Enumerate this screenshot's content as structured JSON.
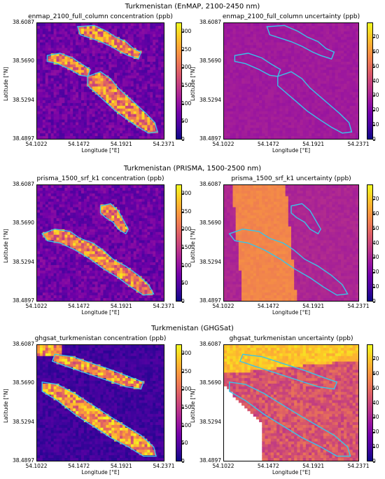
{
  "rows": [
    {
      "title": "Turkmenistan (EnMAP, 2100-2450 nm)",
      "left": {
        "title": "enmap_2100_full_column concentration (ppb)"
      },
      "right": {
        "title": "enmap_2100_full_column uncertainty (ppb)"
      }
    },
    {
      "title": "Turkmenistan (PRISMA, 1500-2500 nm)",
      "left": {
        "title": "prisma_1500_srf_k1 concentration (ppb)"
      },
      "right": {
        "title": "prisma_1500_srf_k1 uncertainty (ppb)"
      }
    },
    {
      "title": "Turkmenistan (GHGSat)",
      "left": {
        "title": "ghgsat_turkmenistan concentration (ppb)"
      },
      "right": {
        "title": "ghgsat_turkmenistan uncertainty (ppb)"
      }
    }
  ],
  "axes": {
    "xlabel": "Longitude [°E]",
    "ylabel": "Latitude [°N]",
    "xticks": [
      "54.1022",
      "54.1472",
      "54.1921",
      "54.2371"
    ],
    "yticks": [
      "38.6087",
      "38.5690",
      "38.5294",
      "38.4897"
    ]
  },
  "colorbars": {
    "concentration_ticks": [
      "300",
      "250",
      "200",
      "150",
      "100",
      "50",
      "0"
    ],
    "uncertainty_ticks": [
      "70",
      "60",
      "50",
      "40",
      "30",
      "20",
      "10",
      "0"
    ]
  },
  "chart_data": [
    {
      "type": "heatmap",
      "title": "enmap_2100_full_column concentration (ppb)",
      "colorscale": "plasma",
      "zlim": [
        0,
        325
      ],
      "xlim": [
        54.1022,
        54.2371
      ],
      "ylim": [
        38.4897,
        38.6087
      ]
    },
    {
      "type": "heatmap",
      "title": "enmap_2100_full_column uncertainty (ppb)",
      "colorscale": "plasma",
      "zlim": [
        0,
        80
      ],
      "xlim": [
        54.1022,
        54.2371
      ],
      "ylim": [
        38.4897,
        38.6087
      ]
    },
    {
      "type": "heatmap",
      "title": "prisma_1500_srf_k1 concentration (ppb)",
      "colorscale": "plasma",
      "zlim": [
        0,
        325
      ],
      "xlim": [
        54.1022,
        54.2371
      ],
      "ylim": [
        38.4897,
        38.6087
      ]
    },
    {
      "type": "heatmap",
      "title": "prisma_1500_srf_k1 uncertainty (ppb)",
      "colorscale": "plasma",
      "zlim": [
        0,
        80
      ],
      "xlim": [
        54.1022,
        54.2371
      ],
      "ylim": [
        38.4897,
        38.6087
      ]
    },
    {
      "type": "heatmap",
      "title": "ghgsat_turkmenistan concentration (ppb)",
      "colorscale": "plasma",
      "zlim": [
        0,
        325
      ],
      "xlim": [
        54.1022,
        54.2371
      ],
      "ylim": [
        38.4897,
        38.6087
      ]
    },
    {
      "type": "heatmap",
      "title": "ghgsat_turkmenistan uncertainty (ppb)",
      "colorscale": "plasma",
      "zlim": [
        0,
        80
      ],
      "xlim": [
        54.1022,
        54.2371
      ],
      "ylim": [
        38.4897,
        38.6087
      ]
    }
  ]
}
